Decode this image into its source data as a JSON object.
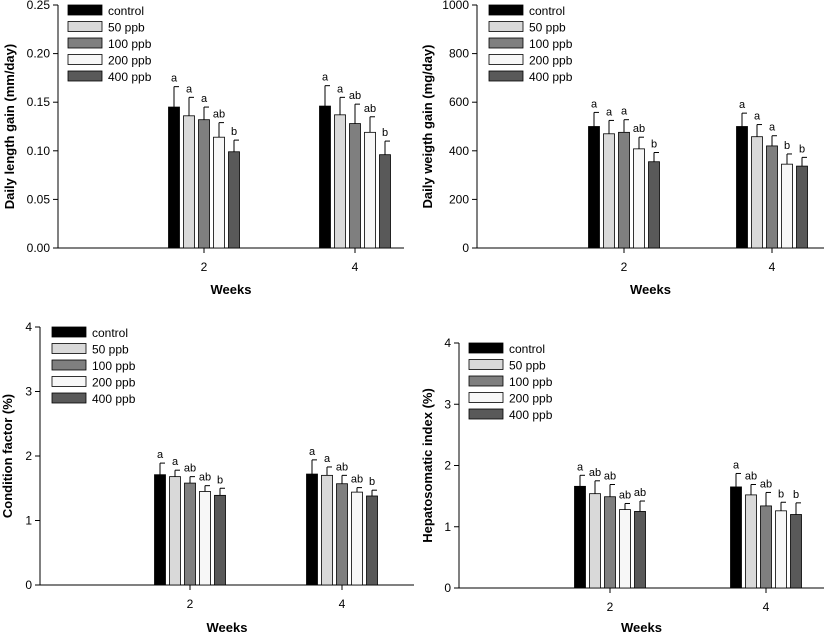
{
  "legend": [
    "control",
    "50 ppb",
    "100 ppb",
    "200 ppb",
    "400 ppb"
  ],
  "series_colors": [
    "#000000",
    "#d9d9d9",
    "#7f7f7f",
    "#f7f7f7",
    "#595959"
  ],
  "chart_data": [
    {
      "type": "bar",
      "categories": [
        "2",
        "4"
      ],
      "xlabel": "Weeks",
      "ylabel": "Daily length gain (mm/day)",
      "ylim": [
        0,
        0.25
      ],
      "yticks": [
        "0.00",
        "0.05",
        "0.10",
        "0.15",
        "0.20",
        "0.25"
      ],
      "legend_position": "top-left",
      "series": [
        {
          "name": "control",
          "values": [
            0.145,
            0.146
          ],
          "errors": [
            0.021,
            0.021
          ],
          "labels": [
            "a",
            "a"
          ]
        },
        {
          "name": "50 ppb",
          "values": [
            0.136,
            0.137
          ],
          "errors": [
            0.019,
            0.018
          ],
          "labels": [
            "a",
            "a"
          ]
        },
        {
          "name": "100 ppb",
          "values": [
            0.132,
            0.128
          ],
          "errors": [
            0.013,
            0.02
          ],
          "labels": [
            "a",
            "ab"
          ]
        },
        {
          "name": "200 ppb",
          "values": [
            0.114,
            0.119
          ],
          "errors": [
            0.015,
            0.016
          ],
          "labels": [
            "ab",
            "ab"
          ]
        },
        {
          "name": "400 ppb",
          "values": [
            0.099,
            0.096
          ],
          "errors": [
            0.012,
            0.014
          ],
          "labels": [
            "b",
            "b"
          ]
        }
      ]
    },
    {
      "type": "bar",
      "categories": [
        "2",
        "4"
      ],
      "xlabel": "Weeks",
      "ylabel": "Daily weigth gain (mg/day)",
      "ylim": [
        0,
        1000
      ],
      "yticks": [
        "0",
        "200",
        "400",
        "600",
        "800",
        "1000"
      ],
      "legend_position": "top-left",
      "series": [
        {
          "name": "control",
          "values": [
            500,
            500
          ],
          "errors": [
            58,
            55
          ],
          "labels": [
            "a",
            "a"
          ]
        },
        {
          "name": "50 ppb",
          "values": [
            470,
            458
          ],
          "errors": [
            55,
            50
          ],
          "labels": [
            "a",
            "a"
          ]
        },
        {
          "name": "100 ppb",
          "values": [
            476,
            420
          ],
          "errors": [
            52,
            42
          ],
          "labels": [
            "a",
            "a"
          ]
        },
        {
          "name": "200 ppb",
          "values": [
            408,
            345
          ],
          "errors": [
            48,
            42
          ],
          "labels": [
            "ab",
            "b"
          ]
        },
        {
          "name": "400 ppb",
          "values": [
            355,
            337
          ],
          "errors": [
            38,
            36
          ],
          "labels": [
            "b",
            "b"
          ]
        }
      ]
    },
    {
      "type": "bar",
      "categories": [
        "2",
        "4"
      ],
      "xlabel": "Weeks",
      "ylabel": "Condition factor (%)",
      "ylim": [
        0,
        4
      ],
      "yticks": [
        "0",
        "1",
        "2",
        "3",
        "4"
      ],
      "legend_position": "top-left",
      "series": [
        {
          "name": "control",
          "values": [
            1.71,
            1.72
          ],
          "errors": [
            0.18,
            0.22
          ],
          "labels": [
            "a",
            "a"
          ]
        },
        {
          "name": "50 ppb",
          "values": [
            1.68,
            1.7
          ],
          "errors": [
            0.1,
            0.13
          ],
          "labels": [
            "a",
            "a"
          ]
        },
        {
          "name": "100 ppb",
          "values": [
            1.58,
            1.57
          ],
          "errors": [
            0.1,
            0.13
          ],
          "labels": [
            "ab",
            "ab"
          ]
        },
        {
          "name": "200 ppb",
          "values": [
            1.45,
            1.44
          ],
          "errors": [
            0.09,
            0.07
          ],
          "labels": [
            "ab",
            "ab"
          ]
        },
        {
          "name": "400 ppb",
          "values": [
            1.39,
            1.38
          ],
          "errors": [
            0.11,
            0.09
          ],
          "labels": [
            "b",
            "b"
          ]
        }
      ]
    },
    {
      "type": "bar",
      "categories": [
        "2",
        "4"
      ],
      "xlabel": "Weeks",
      "ylabel": "Hepatosomatic index (%)",
      "ylim": [
        0,
        4
      ],
      "yticks": [
        "0",
        "1",
        "2",
        "3",
        "4"
      ],
      "legend_position": "top-left",
      "series": [
        {
          "name": "control",
          "values": [
            1.66,
            1.65
          ],
          "errors": [
            0.18,
            0.22
          ],
          "labels": [
            "a",
            "a"
          ]
        },
        {
          "name": "50 ppb",
          "values": [
            1.54,
            1.52
          ],
          "errors": [
            0.21,
            0.17
          ],
          "labels": [
            "ab",
            "ab"
          ]
        },
        {
          "name": "100 ppb",
          "values": [
            1.49,
            1.34
          ],
          "errors": [
            0.2,
            0.22
          ],
          "labels": [
            "ab",
            "ab"
          ]
        },
        {
          "name": "200 ppb",
          "values": [
            1.28,
            1.26
          ],
          "errors": [
            0.1,
            0.14
          ],
          "labels": [
            "ab",
            "b"
          ]
        },
        {
          "name": "400 ppb",
          "values": [
            1.25,
            1.2
          ],
          "errors": [
            0.17,
            0.19
          ],
          "labels": [
            "ab",
            "b"
          ]
        }
      ]
    }
  ]
}
